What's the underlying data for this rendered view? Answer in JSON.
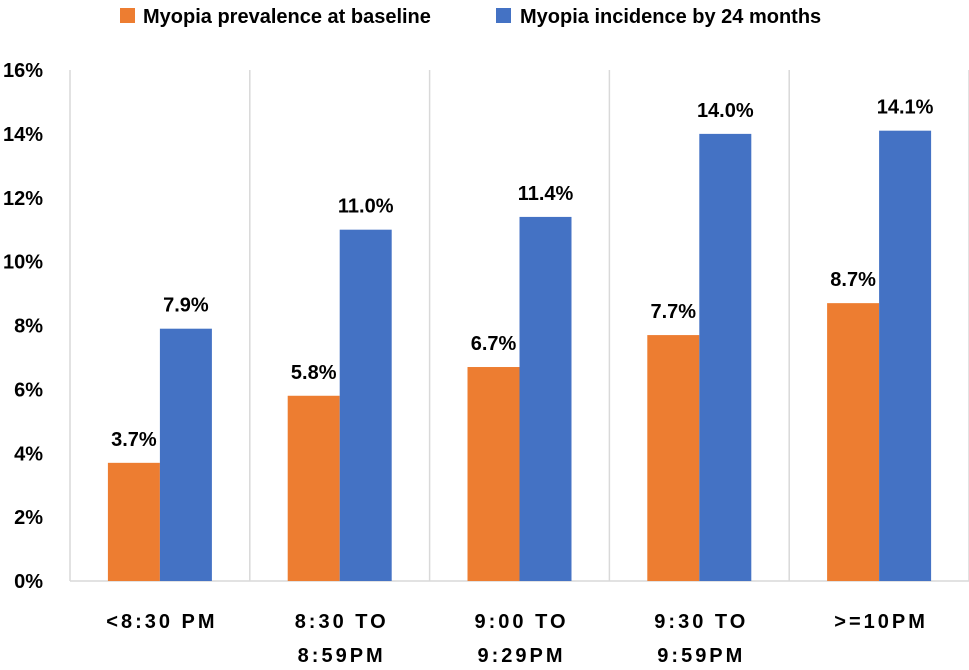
{
  "chart_data": {
    "type": "bar",
    "title": "",
    "xlabel": "",
    "ylabel": "",
    "ylim": [
      0,
      16
    ],
    "yticks": [
      "0%",
      "2%",
      "4%",
      "6%",
      "8%",
      "10%",
      "12%",
      "14%",
      "16%"
    ],
    "categories": [
      [
        "<8:30 PM"
      ],
      [
        "8:30 TO",
        "8:59PM"
      ],
      [
        "9:00 TO",
        "9:29PM"
      ],
      [
        "9:30 TO",
        "9:59PM"
      ],
      [
        ">=10PM"
      ]
    ],
    "series": [
      {
        "name": "Myopia prevalence at baseline",
        "color": "#ED7D31",
        "values": [
          3.7,
          5.8,
          6.7,
          7.7,
          8.7
        ],
        "labels": [
          "3.7%",
          "5.8%",
          "6.7%",
          "7.7%",
          "8.7%"
        ]
      },
      {
        "name": "Myopia incidence by 24 months",
        "color": "#4472C4",
        "values": [
          7.9,
          11.0,
          11.4,
          14.0,
          14.1
        ],
        "labels": [
          "7.9%",
          "11.0%",
          "11.4%",
          "14.0%",
          "14.1%"
        ]
      }
    ],
    "grid": "vertical-separators",
    "legend": "top-center"
  }
}
